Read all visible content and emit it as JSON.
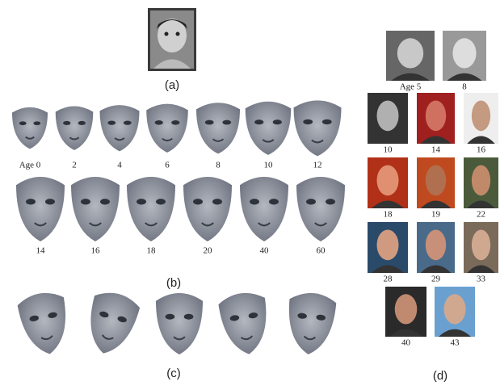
{
  "panel_a": {
    "label": "(a)"
  },
  "panel_b": {
    "label": "(b)",
    "row1_ages": [
      "Age 0",
      "2",
      "4",
      "6",
      "8",
      "10",
      "12"
    ],
    "row2_ages": [
      "14",
      "16",
      "18",
      "20",
      "40",
      "60"
    ]
  },
  "panel_c": {
    "label": "(c)"
  },
  "panel_d": {
    "label": "(d)",
    "photo_ages": [
      "Age 5",
      "8",
      "10",
      "14",
      "16",
      "18",
      "19",
      "22",
      "28",
      "29",
      "33",
      "40",
      "43"
    ]
  }
}
